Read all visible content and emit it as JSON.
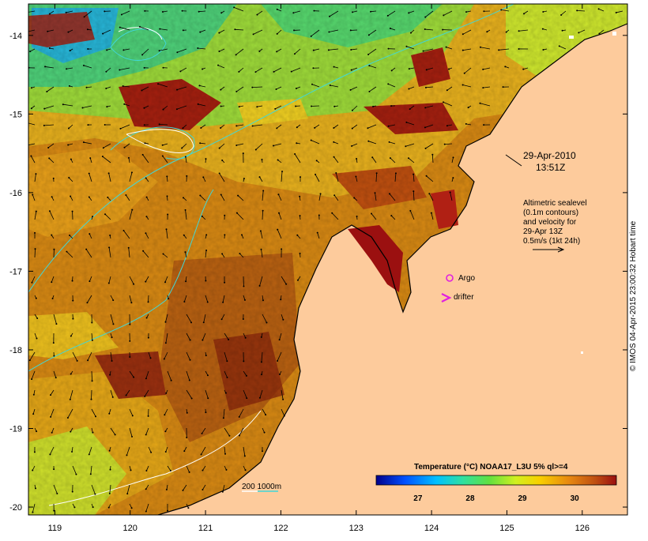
{
  "map": {
    "lon_range": [
      118.65,
      126.6
    ],
    "lat_range": [
      -20.1,
      -13.6
    ],
    "lon_ticks": [
      "119",
      "120",
      "121",
      "122",
      "123",
      "124",
      "125",
      "126"
    ],
    "lat_ticks": [
      "-14",
      "-15",
      "-16",
      "-17",
      "-18",
      "-19",
      "-20"
    ]
  },
  "annotations": {
    "date_line1": "29-Apr-2010",
    "date_line2": "13:51Z",
    "legend_lines": [
      "Altimetric sealevel",
      "(0.1m contours)",
      "and velocity for",
      "29-Apr 13Z",
      "0.5m/s (1kt 24h)"
    ],
    "argo_label": "Argo",
    "drifter_label": "drifter",
    "depth_label": "200  1000m"
  },
  "colorbar": {
    "title": "Temperature (°C) NOAA17_L3U 5% ql>=4",
    "tick_labels": [
      "27",
      "28",
      "29",
      "30"
    ],
    "tick_values": [
      27,
      28,
      29,
      30
    ],
    "range": [
      26.2,
      30.8
    ]
  },
  "credit": "© IMOS 04-Apr-2015 23:00:32 Hobart time",
  "colors": {
    "land": "#fdcb9c",
    "argo": "#e020e0",
    "drifter": "#e020e0",
    "contour": "#40d8d8",
    "colorbar_stops": [
      "#00008b",
      "#0050ff",
      "#00c0ff",
      "#30e0a0",
      "#60e040",
      "#d0f020",
      "#f8d000",
      "#e88a10",
      "#c05010",
      "#9b1010"
    ]
  }
}
